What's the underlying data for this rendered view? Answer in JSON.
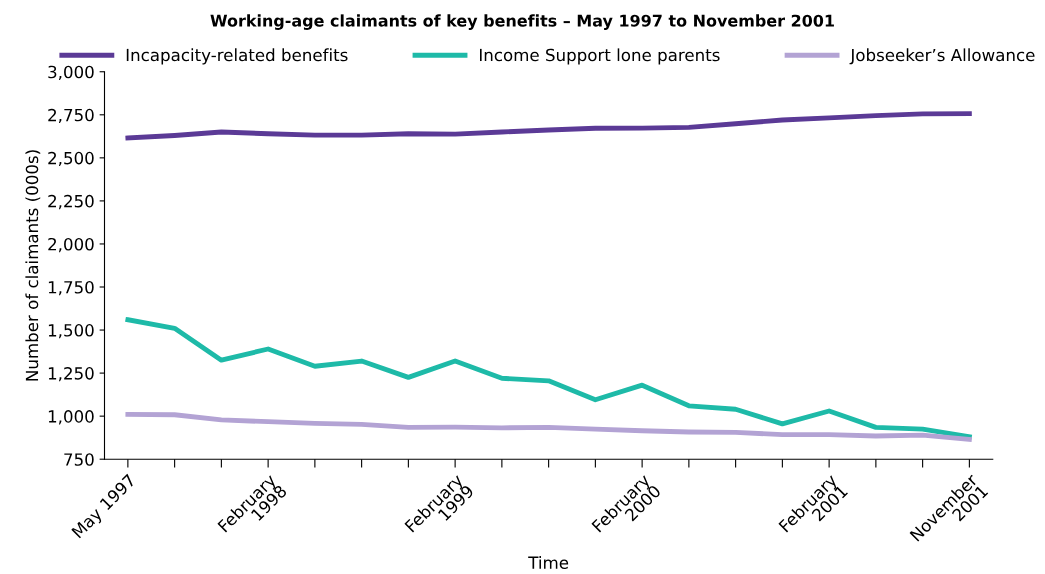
{
  "chart_data": {
    "type": "line",
    "title": "Working-age claimants of key benefits – May 1997 to November 2001",
    "xlabel": "Time",
    "ylabel": "Number of claimants (000s)",
    "categories": [
      "May 1997",
      null,
      null,
      "February\n1998",
      null,
      null,
      null,
      "February\n1999",
      null,
      null,
      null,
      "February\n2000",
      null,
      null,
      null,
      "February\n2001",
      null,
      null,
      "November\n2001"
    ],
    "series": [
      {
        "name": "Incapacity-related benefits",
        "color": "#5b3a96",
        "values": [
          2615,
          2630,
          2650,
          2640,
          2632,
          2632,
          2640,
          2638,
          2650,
          2662,
          2672,
          2673,
          2677,
          2698,
          2720,
          2732,
          2745,
          2755,
          2757
        ]
      },
      {
        "name": "Income Support lone parents",
        "color": "#1ebaa8",
        "values": [
          1560,
          1510,
          1325,
          1390,
          1290,
          1320,
          1225,
          1320,
          1220,
          1205,
          1095,
          1180,
          1060,
          1040,
          955,
          1030,
          935,
          925,
          880
        ]
      },
      {
        "name": "Jobseeker’s Allowance",
        "color": "#b3a3d4",
        "values": [
          1010,
          1008,
          978,
          968,
          958,
          952,
          935,
          936,
          932,
          935,
          925,
          915,
          908,
          906,
          893,
          893,
          885,
          890,
          865
        ]
      }
    ],
    "ylim": [
      750,
      3000
    ],
    "yticks": [
      {
        "value": 750,
        "label": "750"
      },
      {
        "value": 1000,
        "label": "1,000"
      },
      {
        "value": 1250,
        "label": "1,250"
      },
      {
        "value": 1500,
        "label": "1,500"
      },
      {
        "value": 1750,
        "label": "1,750"
      },
      {
        "value": 2000,
        "label": "2,000"
      },
      {
        "value": 2250,
        "label": "2,250"
      },
      {
        "value": 2500,
        "label": "2,500"
      },
      {
        "value": 2750,
        "label": "2,750"
      },
      {
        "value": 3000,
        "label": "3,000"
      }
    ],
    "grid": false,
    "legend": "top",
    "marker": "none",
    "line_style": "solid"
  }
}
